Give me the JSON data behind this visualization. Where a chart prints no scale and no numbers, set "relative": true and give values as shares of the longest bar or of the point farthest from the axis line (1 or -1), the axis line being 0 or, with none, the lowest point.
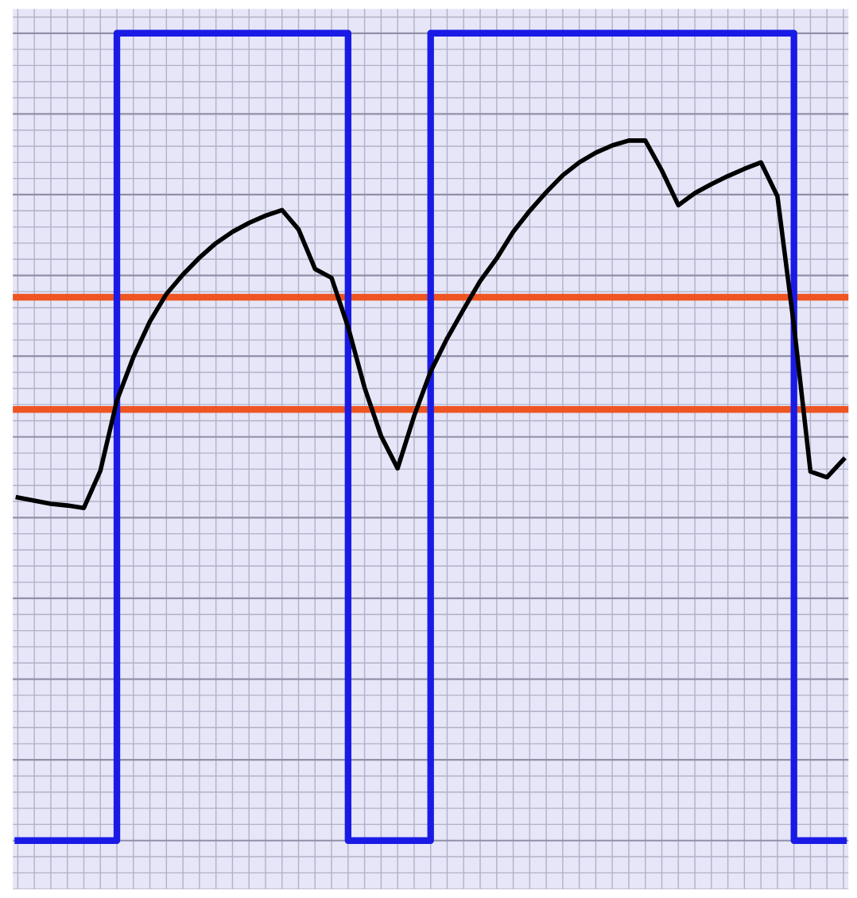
{
  "chart_data": {
    "type": "line",
    "relative": true,
    "grid": true,
    "categories": [
      null,
      null,
      null,
      null,
      null,
      null,
      null,
      null,
      null,
      null,
      null,
      null,
      null,
      null,
      null,
      null,
      null,
      null,
      null,
      null,
      null,
      null,
      null,
      null,
      null,
      null,
      null,
      null,
      null,
      null,
      null,
      null,
      null,
      null,
      null,
      null,
      null,
      null,
      null,
      null,
      null,
      null,
      null,
      null,
      null,
      null,
      null,
      null,
      null,
      null,
      null
    ],
    "series": [
      {
        "type": "step",
        "color": "#1a1ae6",
        "values": [
          0,
          0,
          0,
          0,
          0,
          0,
          1,
          1,
          1,
          1,
          1,
          1,
          1,
          1,
          1,
          1,
          1,
          1,
          1,
          1,
          0,
          0,
          0,
          0,
          0,
          1,
          1,
          1,
          1,
          1,
          1,
          1,
          1,
          1,
          1,
          1,
          1,
          1,
          1,
          1,
          1,
          1,
          1,
          1,
          1,
          1,
          1,
          0,
          0,
          0,
          0
        ]
      },
      {
        "color": "#000000",
        "values": [
          0.425,
          0.421,
          0.417,
          0.415,
          0.412,
          0.458,
          0.545,
          0.599,
          0.643,
          0.677,
          0.701,
          0.722,
          0.74,
          0.754,
          0.765,
          0.774,
          0.781,
          0.757,
          0.708,
          0.697,
          0.636,
          0.561,
          0.501,
          0.461,
          0.526,
          0.581,
          0.622,
          0.658,
          0.693,
          0.721,
          0.754,
          0.78,
          0.803,
          0.824,
          0.84,
          0.852,
          0.861,
          0.867,
          0.867,
          0.83,
          0.787,
          0.802,
          0.813,
          0.823,
          0.832,
          0.84,
          0.798,
          0.638,
          0.457,
          0.45,
          0.472
        ]
      }
    ],
    "ref_lines": [
      {
        "axis": "y",
        "value": 0.673,
        "color": "#ee5522"
      },
      {
        "axis": "y",
        "value": 0.534,
        "color": "#ee5522"
      }
    ]
  }
}
